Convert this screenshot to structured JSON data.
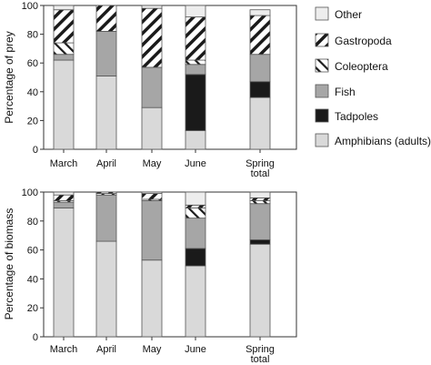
{
  "chart_data": [
    {
      "type": "bar",
      "stacked": true,
      "ylabel": "Percentage of prey",
      "ylim": [
        0,
        100
      ],
      "yticks": [
        0,
        20,
        40,
        60,
        80,
        100
      ],
      "categories": [
        "March",
        "April",
        "May",
        "June",
        "Spring total"
      ],
      "series": [
        {
          "name": "Amphibians (adults)",
          "values": [
            62,
            51,
            29,
            13,
            36
          ]
        },
        {
          "name": "Tadpoles",
          "values": [
            0,
            0,
            0,
            39,
            11
          ]
        },
        {
          "name": "Fish",
          "values": [
            4,
            31,
            28,
            7,
            19
          ]
        },
        {
          "name": "Coleoptera",
          "values": [
            8,
            0,
            0,
            3,
            0
          ]
        },
        {
          "name": "Gastropoda",
          "values": [
            23,
            18,
            41,
            30,
            27
          ]
        },
        {
          "name": "Other",
          "values": [
            3,
            0,
            2,
            8,
            4
          ]
        }
      ]
    },
    {
      "type": "bar",
      "stacked": true,
      "ylabel": "Percentage of biomass",
      "ylim": [
        0,
        100
      ],
      "yticks": [
        0,
        20,
        40,
        60,
        80,
        100
      ],
      "categories": [
        "March",
        "April",
        "May",
        "June",
        "Spring total"
      ],
      "series": [
        {
          "name": "Amphibians (adults)",
          "values": [
            89,
            66,
            53,
            49,
            64
          ]
        },
        {
          "name": "Tadpoles",
          "values": [
            0,
            0,
            0,
            12,
            3
          ]
        },
        {
          "name": "Fish",
          "values": [
            4,
            32,
            41,
            21,
            25
          ]
        },
        {
          "name": "Coleoptera",
          "values": [
            1,
            1,
            1,
            7,
            2
          ]
        },
        {
          "name": "Gastropoda",
          "values": [
            4,
            1,
            4,
            2,
            2
          ]
        },
        {
          "name": "Other",
          "values": [
            2,
            0,
            1,
            9,
            4
          ]
        }
      ]
    }
  ],
  "legend": {
    "placement": "right",
    "entries": [
      "Other",
      "Gastropoda",
      "Coleoptera",
      "Fish",
      "Tadpoles",
      "Amphibians (adults)"
    ]
  },
  "colors": {
    "Amphibians (adults)": "#d9d9d9",
    "Tadpoles": "#1a1a1a",
    "Fish": "#a6a6a6",
    "Coleoptera": "#ffffff",
    "Gastropoda": "#ffffff",
    "Other": "#ededed",
    "bar_outline": "#555555",
    "axis": "#333333"
  }
}
